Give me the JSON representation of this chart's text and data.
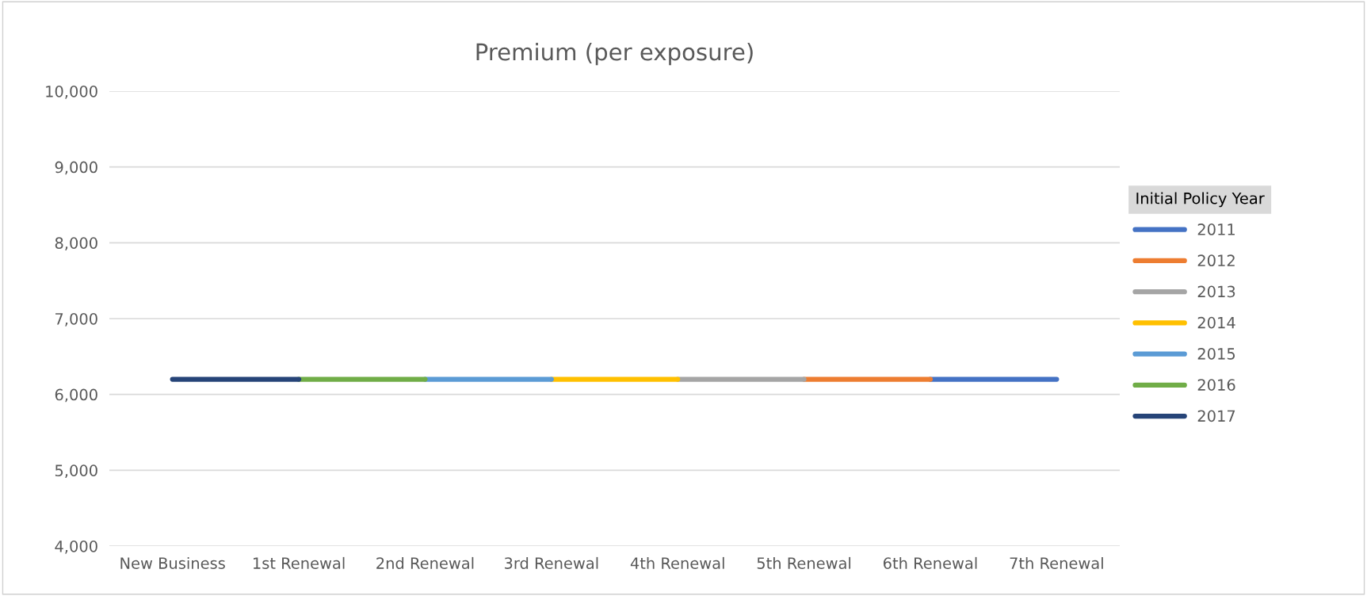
{
  "chart_data": {
    "type": "line",
    "title": "Premium (per exposure)",
    "categories": [
      "New Business",
      "1st Renewal",
      "2nd Renewal",
      "3rd Renewal",
      "4th Renewal",
      "5th Renewal",
      "6th Renewal",
      "7th Renewal"
    ],
    "series": [
      {
        "name": "2011",
        "color": "#4472c4",
        "values": [
          null,
          null,
          null,
          null,
          null,
          null,
          6200,
          6200
        ]
      },
      {
        "name": "2012",
        "color": "#ed7d31",
        "values": [
          null,
          null,
          null,
          null,
          null,
          6200,
          6200,
          null
        ]
      },
      {
        "name": "2013",
        "color": "#a5a5a5",
        "values": [
          null,
          null,
          null,
          null,
          6200,
          6200,
          null,
          null
        ]
      },
      {
        "name": "2014",
        "color": "#ffc000",
        "values": [
          null,
          null,
          null,
          6200,
          6200,
          null,
          null,
          null
        ]
      },
      {
        "name": "2015",
        "color": "#5b9bd5",
        "values": [
          null,
          null,
          6200,
          6200,
          null,
          null,
          null,
          null
        ]
      },
      {
        "name": "2016",
        "color": "#70ad47",
        "values": [
          null,
          6200,
          6200,
          null,
          null,
          null,
          null,
          null
        ]
      },
      {
        "name": "2017",
        "color": "#264478",
        "values": [
          6200,
          6200,
          null,
          null,
          null,
          null,
          null,
          null
        ]
      }
    ],
    "legend_title": "Initial Policy Year",
    "ylim": [
      4000,
      10000
    ],
    "yticks": [
      {
        "value": 4000,
        "label": "4,000"
      },
      {
        "value": 5000,
        "label": "5,000"
      },
      {
        "value": 6000,
        "label": "6,000"
      },
      {
        "value": 7000,
        "label": "7,000"
      },
      {
        "value": 8000,
        "label": "8,000"
      },
      {
        "value": 9000,
        "label": "9,000"
      },
      {
        "value": 10000,
        "label": "10,000"
      }
    ],
    "grid": "y",
    "legend": "right",
    "marker": "none",
    "line_style": "solid"
  }
}
